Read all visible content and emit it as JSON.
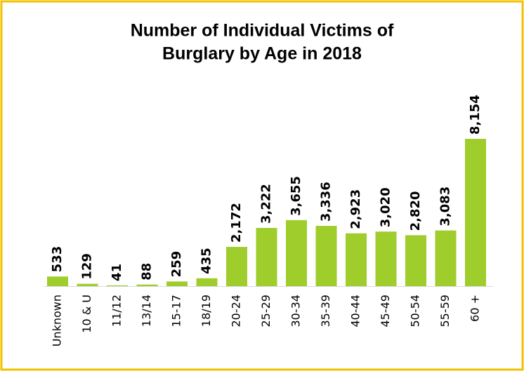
{
  "chart_data": {
    "type": "bar",
    "title": [
      "Number of Individual Victims of",
      "Burglary by Age in 2018"
    ],
    "categories": [
      "Unknown",
      "10 & U",
      "11/12",
      "13/14",
      "15-17",
      "18/19",
      "20-24",
      "25-29",
      "30-34",
      "35-39",
      "40-44",
      "45-49",
      "50-54",
      "55-59",
      "60 +"
    ],
    "values": [
      533,
      129,
      41,
      88,
      259,
      435,
      2172,
      3222,
      3655,
      3336,
      2923,
      3020,
      2820,
      3083,
      8154
    ],
    "value_labels": [
      "533",
      "129",
      "41",
      "88",
      "259",
      "435",
      "2,172",
      "3,222",
      "3,655",
      "3,336",
      "2,923",
      "3,020",
      "2,820",
      "3,083",
      "8,154"
    ],
    "color": "#9fcd2b"
  }
}
